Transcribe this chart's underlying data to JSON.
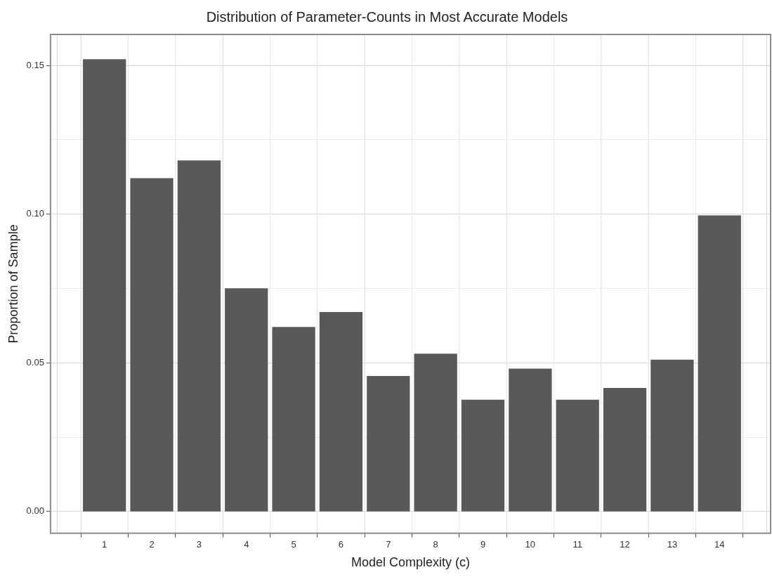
{
  "chart_data": {
    "type": "bar",
    "title": "Distribution of Parameter-Counts in Most Accurate Models",
    "xlabel": "Model Complexity (c)",
    "ylabel": "Proportion of Sample",
    "x": [
      1,
      2,
      3,
      4,
      5,
      6,
      7,
      8,
      9,
      10,
      11,
      12,
      13,
      14
    ],
    "values": [
      0.152,
      0.112,
      0.118,
      0.075,
      0.062,
      0.067,
      0.0455,
      0.053,
      0.0375,
      0.048,
      0.0375,
      0.0415,
      0.051,
      0.0995
    ],
    "color": "#595959",
    "xlim": [
      -0.14,
      15.08
    ],
    "xticks": [
      1,
      2,
      3,
      4,
      5,
      6,
      7,
      8,
      9,
      10,
      11,
      12,
      13,
      14
    ],
    "ylim": [
      -0.0073,
      0.1604
    ],
    "yticks": [
      {
        "value": 0,
        "label": "0.00"
      },
      {
        "value": 0.025,
        "label": null
      },
      {
        "value": 0.05,
        "label": "0.05"
      },
      {
        "value": 0.075,
        "label": null
      },
      {
        "value": 0.1,
        "label": "0.10"
      },
      {
        "value": 0.125,
        "label": null
      },
      {
        "value": 0.15,
        "label": "0.15"
      }
    ],
    "grid": true,
    "legend": false
  }
}
